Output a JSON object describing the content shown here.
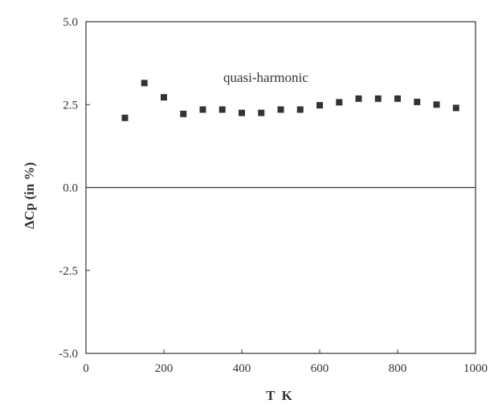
{
  "chart_data": {
    "type": "scatter",
    "title": "",
    "xlabel": "T  K",
    "ylabel": "ΔCp (in %)",
    "xlim": [
      0,
      1000
    ],
    "ylim": [
      -5.0,
      5.0
    ],
    "xticks": [
      0,
      200,
      400,
      600,
      800,
      1000
    ],
    "xtick_labels": [
      "0",
      "200",
      "400",
      "600",
      "800",
      "1000"
    ],
    "yticks": [
      5.0,
      2.5,
      0.0,
      -2.5,
      -5.0
    ],
    "ytick_labels": [
      "5.0",
      "2.5",
      "0.0",
      "-2.5",
      "-5.0"
    ],
    "grid": false,
    "reference_line_y": 0.0,
    "annotation": "quasi-harmonic",
    "marker_color": "#333333",
    "axis_color": "#333333",
    "series": [
      {
        "x": [
          100,
          150,
          200,
          250,
          300,
          350,
          400,
          450,
          500,
          550,
          600,
          650,
          700,
          750,
          800,
          850,
          900,
          950
        ],
        "y": [
          2.1,
          3.15,
          2.72,
          2.22,
          2.35,
          2.35,
          2.25,
          2.25,
          2.35,
          2.35,
          2.48,
          2.57,
          2.68,
          2.68,
          2.68,
          2.58,
          2.5,
          2.4
        ]
      }
    ]
  }
}
